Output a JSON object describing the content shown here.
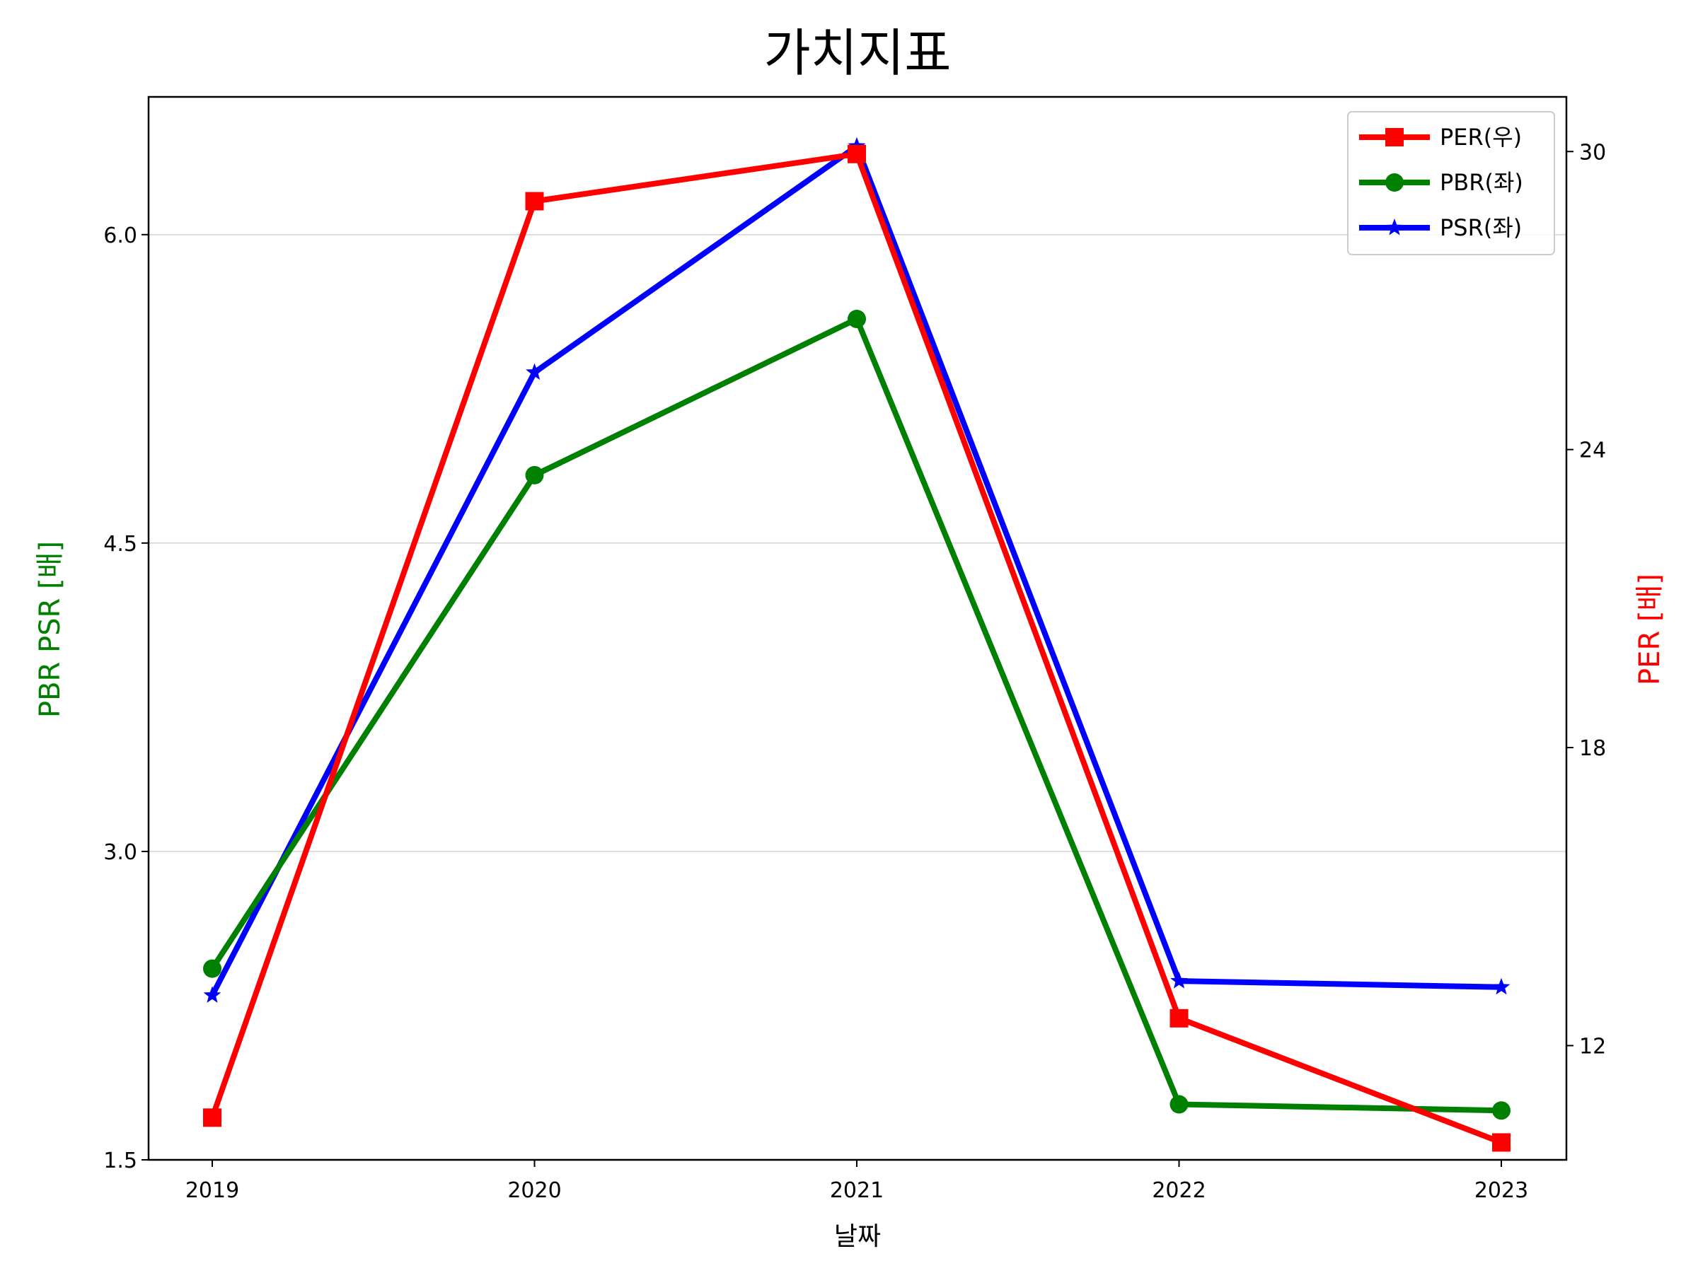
{
  "chart_data": {
    "type": "line",
    "title": "가치지표",
    "xlabel": "날짜",
    "ylabel_left": "PBR PSR [배]",
    "ylabel_right": "PER [배]",
    "ylabel_left_color": "#008000",
    "ylabel_right_color": "#ff0000",
    "categories": [
      "2019",
      "2020",
      "2021",
      "2022",
      "2023"
    ],
    "ylim_left": [
      1.5,
      6.67
    ],
    "ylim_right": [
      9.7,
      31.1
    ],
    "yticks_left": [
      "1.5",
      "3.0",
      "4.5",
      "6.0"
    ],
    "yticks_right": [
      "12",
      "18",
      "24",
      "30"
    ],
    "grid": "horizontal (left axis)",
    "legend_position": "top-right",
    "series": [
      {
        "name": "PER(우)",
        "axis": "right",
        "color": "#ff0000",
        "marker": "square",
        "values": [
          10.55,
          29.0,
          29.95,
          12.55,
          10.05
        ]
      },
      {
        "name": "PBR(좌)",
        "axis": "left",
        "color": "#008000",
        "marker": "circle",
        "values": [
          2.43,
          4.83,
          5.59,
          1.77,
          1.74
        ]
      },
      {
        "name": "PSR(좌)",
        "axis": "left",
        "color": "#0000ff",
        "marker": "star",
        "values": [
          2.3,
          5.33,
          6.43,
          2.37,
          2.34
        ]
      }
    ]
  }
}
